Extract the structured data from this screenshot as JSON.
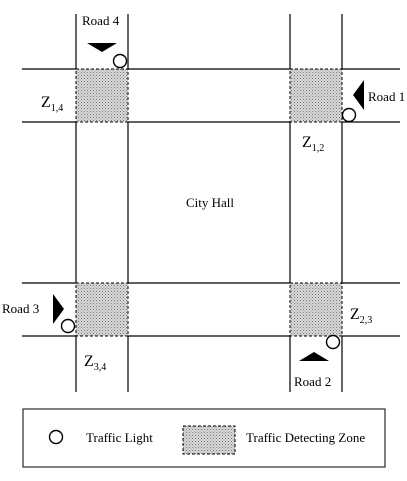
{
  "roads": {
    "road1": "Road 1",
    "road2": "Road 2",
    "road3": "Road 3",
    "road4": "Road 4"
  },
  "center_label": "City Hall",
  "zones": {
    "z14": {
      "main": "Z",
      "sub": "1,4"
    },
    "z12": {
      "main": "Z",
      "sub": "1,2"
    },
    "z23": {
      "main": "Z",
      "sub": "2,3"
    },
    "z34": {
      "main": "Z",
      "sub": "3,4"
    }
  },
  "legend": {
    "traffic_light": "Traffic Light",
    "detecting_zone": "Traffic Detecting Zone"
  },
  "colors": {
    "line": "#000000",
    "zone_fill": "#cfcfcf",
    "zone_dot": "#8a8a8a"
  }
}
